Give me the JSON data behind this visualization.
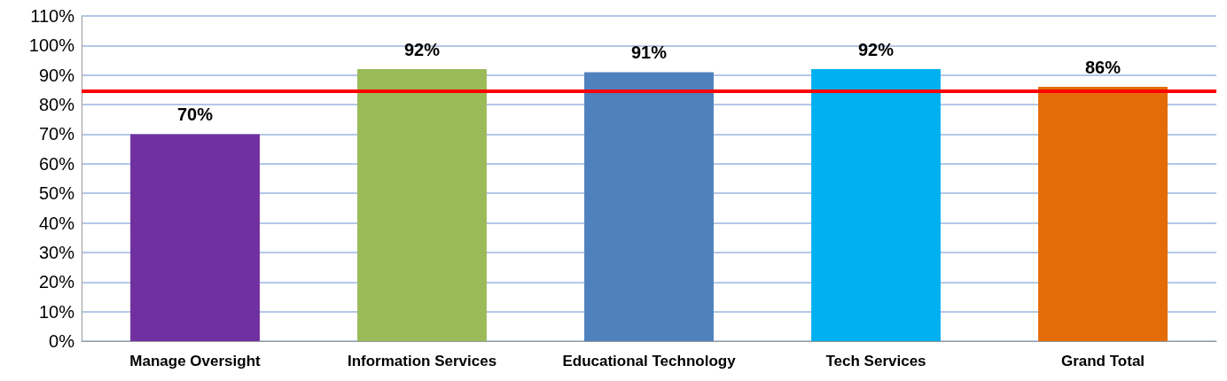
{
  "chart_data": {
    "type": "bar",
    "categories": [
      "Manage Oversight",
      "Information Services",
      "Educational Technology",
      "Tech Services",
      "Grand Total"
    ],
    "values": [
      70,
      92,
      91,
      92,
      86
    ],
    "colors": [
      "#7030a0",
      "#9bbb59",
      "#4f81bd",
      "#00b0f0",
      "#e36c09"
    ],
    "value_labels": [
      "70%",
      "92%",
      "91%",
      "92%",
      "86%"
    ],
    "ylim": [
      0,
      110
    ],
    "yticks": [
      {
        "value": 0,
        "label": "0%"
      },
      {
        "value": 10,
        "label": "10%"
      },
      {
        "value": 20,
        "label": "20%"
      },
      {
        "value": 30,
        "label": "30%"
      },
      {
        "value": 40,
        "label": "40%"
      },
      {
        "value": 50,
        "label": "50%"
      },
      {
        "value": 60,
        "label": "60%"
      },
      {
        "value": 70,
        "label": "70%"
      },
      {
        "value": 80,
        "label": "80%"
      },
      {
        "value": 90,
        "label": "90%"
      },
      {
        "value": 100,
        "label": "100%"
      },
      {
        "value": 110,
        "label": "110%"
      }
    ],
    "grid": "y",
    "ref_lines": [
      {
        "axis": "y",
        "value": 84.5,
        "color": "#ff0000",
        "line_style": "solid"
      }
    ]
  }
}
